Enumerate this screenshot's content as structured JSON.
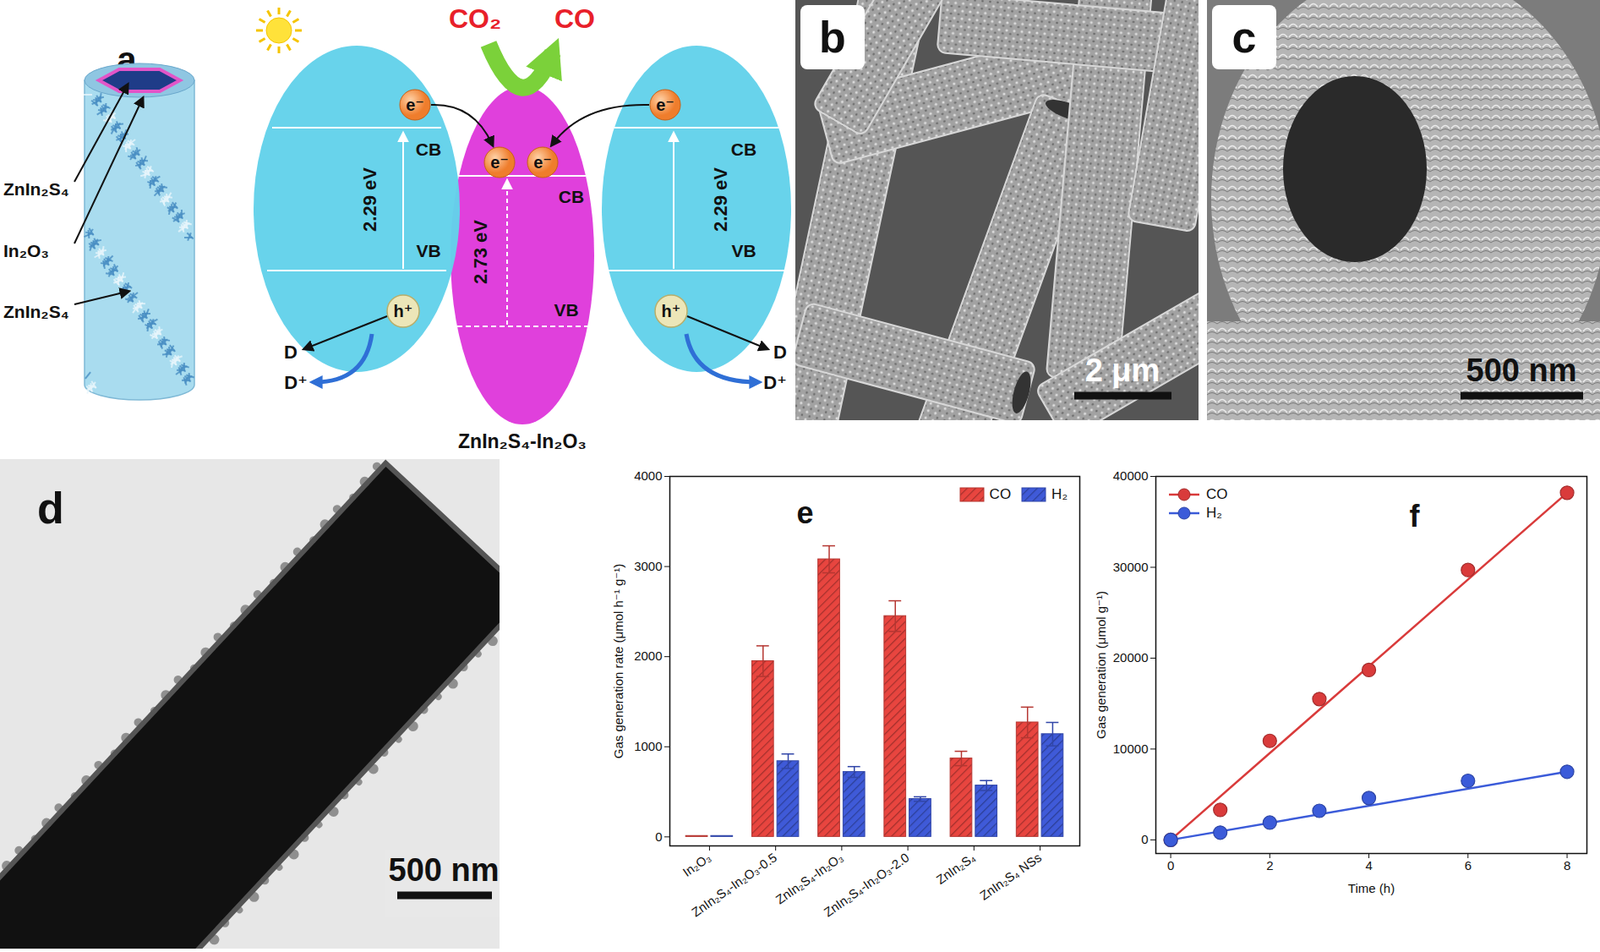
{
  "panels": {
    "a": {
      "label": "a",
      "structure_labels": [
        "ZnIn₂S₄",
        "In₂O₃",
        "ZnIn₂S₄"
      ],
      "reactant": "CO₂",
      "product": "CO",
      "electron": "e⁻",
      "hole": "h⁺",
      "conduction_band": "CB",
      "valence_band": "VB",
      "band_gaps": [
        "2.29 eV",
        "2.73 eV",
        "2.29 eV"
      ],
      "donor": "D",
      "oxidized_donor": "D⁺",
      "caption": "ZnIn₂S₄-In₂O₃"
    },
    "b": {
      "label": "b",
      "scale_bar": "2 μm"
    },
    "c": {
      "label": "c",
      "scale_bar": "500 nm"
    },
    "d": {
      "label": "d",
      "scale_bar": "500 nm"
    }
  },
  "chart_data": [
    {
      "type": "bar",
      "title": "e",
      "categories": [
        "In₂O₃",
        "ZnIn₂S₄-In₂O₃-0.5",
        "ZnIn₂S₄-In₂O₃",
        "ZnIn₂S₄-In₂O₃-2.0",
        "ZnIn₂S₄",
        "ZnIn₂S₄ NSs"
      ],
      "series": [
        {
          "name": "CO",
          "color": "#e8453f",
          "values": [
            10,
            1950,
            3080,
            2450,
            870,
            1270
          ],
          "errors": [
            0,
            170,
            150,
            170,
            80,
            170
          ]
        },
        {
          "name": "H₂",
          "color": "#3f5ad8",
          "values": [
            10,
            840,
            720,
            420,
            570,
            1140
          ],
          "errors": [
            0,
            80,
            60,
            25,
            55,
            130
          ]
        }
      ],
      "y_label": "Gas generation rate (μmol h⁻¹ g⁻¹)",
      "ylim": [
        -100,
        4000
      ],
      "yticks": [
        0,
        1000,
        2000,
        3000,
        4000
      ],
      "legend": "upper right"
    },
    {
      "type": "line",
      "title": "f",
      "x": [
        0,
        1,
        2,
        3,
        4,
        6,
        8
      ],
      "series": [
        {
          "name": "CO",
          "color": "#d93b3b",
          "marker": "circle",
          "line_style": "solid",
          "values": [
            0,
            3300,
            10900,
            15500,
            18700,
            29700,
            38200
          ],
          "fit": {
            "x": [
              0,
              8
            ],
            "values": [
              0,
              38200
            ]
          }
        },
        {
          "name": "H₂",
          "color": "#3b5bd9",
          "marker": "circle",
          "line_style": "solid",
          "values": [
            0,
            800,
            1900,
            3200,
            4600,
            6500,
            7500
          ],
          "fit": {
            "x": [
              0,
              8
            ],
            "values": [
              0,
              7500
            ]
          }
        }
      ],
      "x_label": "Time (h)",
      "y_label": "Gas generation (μmol g⁻¹)",
      "xlim": [
        -0.3,
        8.4
      ],
      "xticks": [
        0,
        2,
        4,
        6,
        8
      ],
      "ylim": [
        -1500,
        40000
      ],
      "yticks": [
        0,
        10000,
        20000,
        30000,
        40000
      ],
      "legend": "upper left"
    }
  ]
}
